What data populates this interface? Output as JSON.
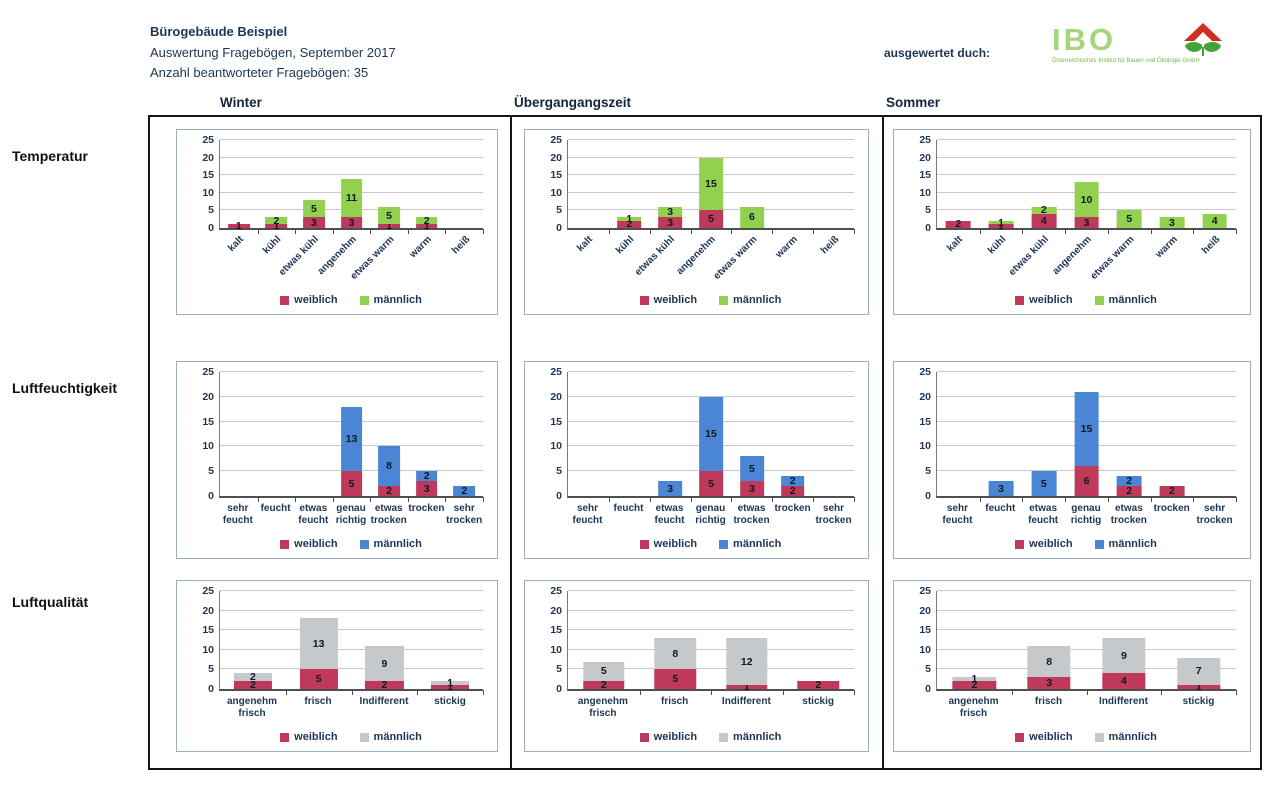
{
  "page": {
    "title": "Bürogebäude Beispiel",
    "subtitle": "Auswertung Fragebögen, September 2017",
    "answered_count": "Anzahl beantworteter Fragebögen: 35",
    "evaluated_by": "ausgewertet duch:",
    "ibo": {
      "name": "IBO",
      "caption": "Österreichisches Institut für Bauen und Ökologie GmbH"
    }
  },
  "columns": [
    "Winter",
    "Übergangangszeit",
    "Sommer"
  ],
  "row_labels": [
    "Temperatur",
    "Luftfeuchtigkeit",
    "Luftqualität"
  ],
  "legend": {
    "female": "weiblich",
    "male": "männlich"
  },
  "colors": {
    "weiblich": "#bf3a5a",
    "maennlich_temperatur": "#92d050",
    "maennlich_luftfeuchtigkeit": "#4a86d4",
    "maennlich_luftqualitaet": "#c5c9cc",
    "gridline": "#c9c9c9",
    "ibo_green": "#a5d57d",
    "logo_red": "#cf2e24",
    "logo_leaf_green": "#44a335"
  },
  "chart_data": [
    {
      "type": "bar",
      "stacked": true,
      "title": "Temperatur – Winter",
      "row": "Temperatur",
      "column": "Winter",
      "categories": [
        "kalt",
        "kühl",
        "etwas kühl",
        "angenehm",
        "etwas warm",
        "warm",
        "heiß"
      ],
      "series": [
        {
          "name": "weiblich",
          "values": [
            1,
            1,
            3,
            3,
            1,
            1,
            0
          ]
        },
        {
          "name": "männlich",
          "values": [
            0,
            2,
            5,
            11,
            5,
            2,
            0
          ]
        }
      ],
      "male_color": "#92d050",
      "ylim": [
        0,
        25
      ],
      "yticks": [
        0,
        5,
        10,
        15,
        20,
        25
      ],
      "rotated_x_labels": true,
      "legend_position": "bottom",
      "grid": true
    },
    {
      "type": "bar",
      "stacked": true,
      "title": "Temperatur – Übergangangszeit",
      "row": "Temperatur",
      "column": "Übergangangszeit",
      "categories": [
        "kalt",
        "kühl",
        "etwas kühl",
        "angenehm",
        "etwas warm",
        "warm",
        "heiß"
      ],
      "series": [
        {
          "name": "weiblich",
          "values": [
            0,
            2,
            3,
            5,
            0,
            0,
            0
          ]
        },
        {
          "name": "männlich",
          "values": [
            0,
            1,
            3,
            15,
            6,
            0,
            0
          ]
        }
      ],
      "male_color": "#92d050",
      "ylim": [
        0,
        25
      ],
      "yticks": [
        0,
        5,
        10,
        15,
        20,
        25
      ],
      "rotated_x_labels": true,
      "legend_position": "bottom",
      "grid": true
    },
    {
      "type": "bar",
      "stacked": true,
      "title": "Temperatur – Sommer",
      "row": "Temperatur",
      "column": "Sommer",
      "categories": [
        "kalt",
        "kühl",
        "etwas kühl",
        "angenehm",
        "etwas warm",
        "warm",
        "heiß"
      ],
      "series": [
        {
          "name": "weiblich",
          "values": [
            2,
            1,
            4,
            3,
            0,
            0,
            0
          ]
        },
        {
          "name": "männlich",
          "values": [
            0,
            1,
            2,
            10,
            5,
            3,
            4
          ]
        }
      ],
      "male_color": "#92d050",
      "ylim": [
        0,
        25
      ],
      "yticks": [
        0,
        5,
        10,
        15,
        20,
        25
      ],
      "rotated_x_labels": true,
      "legend_position": "bottom",
      "grid": true
    },
    {
      "type": "bar",
      "stacked": true,
      "title": "Luftfeuchtigkeit – Winter",
      "row": "Luftfeuchtigkeit",
      "column": "Winter",
      "categories": [
        "sehr feucht",
        "feucht",
        "etwas feucht",
        "genau richtig",
        "etwas trocken",
        "trocken",
        "sehr trocken"
      ],
      "series": [
        {
          "name": "weiblich",
          "values": [
            0,
            0,
            0,
            5,
            2,
            3,
            0
          ]
        },
        {
          "name": "männlich",
          "values": [
            0,
            0,
            0,
            13,
            8,
            2,
            2
          ]
        }
      ],
      "male_color": "#4a86d4",
      "ylim": [
        0,
        25
      ],
      "yticks": [
        0,
        5,
        10,
        15,
        20,
        25
      ],
      "rotated_x_labels": false,
      "legend_position": "bottom",
      "grid": true
    },
    {
      "type": "bar",
      "stacked": true,
      "title": "Luftfeuchtigkeit – Übergangangszeit",
      "row": "Luftfeuchtigkeit",
      "column": "Übergangangszeit",
      "categories": [
        "sehr feucht",
        "feucht",
        "etwas feucht",
        "genau richtig",
        "etwas trocken",
        "trocken",
        "sehr trocken"
      ],
      "series": [
        {
          "name": "weiblich",
          "values": [
            0,
            0,
            0,
            5,
            3,
            2,
            0
          ]
        },
        {
          "name": "männlich",
          "values": [
            0,
            0,
            3,
            15,
            5,
            2,
            0
          ]
        }
      ],
      "male_color": "#4a86d4",
      "ylim": [
        0,
        25
      ],
      "yticks": [
        0,
        5,
        10,
        15,
        20,
        25
      ],
      "rotated_x_labels": false,
      "legend_position": "bottom",
      "grid": true
    },
    {
      "type": "bar",
      "stacked": true,
      "title": "Luftfeuchtigkeit – Sommer",
      "row": "Luftfeuchtigkeit",
      "column": "Sommer",
      "categories": [
        "sehr feucht",
        "feucht",
        "etwas feucht",
        "genau richtig",
        "etwas trocken",
        "trocken",
        "sehr trocken"
      ],
      "series": [
        {
          "name": "weiblich",
          "values": [
            0,
            0,
            0,
            6,
            2,
            2,
            0
          ]
        },
        {
          "name": "männlich",
          "values": [
            0,
            3,
            5,
            15,
            2,
            0,
            0
          ]
        }
      ],
      "male_color": "#4a86d4",
      "ylim": [
        0,
        25
      ],
      "yticks": [
        0,
        5,
        10,
        15,
        20,
        25
      ],
      "rotated_x_labels": false,
      "legend_position": "bottom",
      "grid": true
    },
    {
      "type": "bar",
      "stacked": true,
      "title": "Luftqualität – Winter",
      "row": "Luftqualität",
      "column": "Winter",
      "categories": [
        "angenehm frisch",
        "frisch",
        "Indifferent",
        "stickig"
      ],
      "series": [
        {
          "name": "weiblich",
          "values": [
            2,
            5,
            2,
            1
          ]
        },
        {
          "name": "männlich",
          "values": [
            2,
            13,
            9,
            1
          ]
        }
      ],
      "male_color": "#c5c9cc",
      "ylim": [
        0,
        25
      ],
      "yticks": [
        0,
        5,
        10,
        15,
        20,
        25
      ],
      "rotated_x_labels": false,
      "legend_position": "bottom",
      "grid": true
    },
    {
      "type": "bar",
      "stacked": true,
      "title": "Luftqualität – Übergangangszeit",
      "row": "Luftqualität",
      "column": "Übergangangszeit",
      "categories": [
        "angenehm frisch",
        "frisch",
        "Indifferent",
        "stickig"
      ],
      "series": [
        {
          "name": "weiblich",
          "values": [
            2,
            5,
            1,
            2
          ]
        },
        {
          "name": "männlich",
          "values": [
            5,
            8,
            12,
            0
          ]
        }
      ],
      "male_color": "#c5c9cc",
      "ylim": [
        0,
        25
      ],
      "yticks": [
        0,
        5,
        10,
        15,
        20,
        25
      ],
      "rotated_x_labels": false,
      "legend_position": "bottom",
      "grid": true
    },
    {
      "type": "bar",
      "stacked": true,
      "title": "Luftqualität – Sommer",
      "row": "Luftqualität",
      "column": "Sommer",
      "categories": [
        "angenehm frisch",
        "frisch",
        "Indifferent",
        "stickig"
      ],
      "series": [
        {
          "name": "weiblich",
          "values": [
            2,
            3,
            4,
            1
          ]
        },
        {
          "name": "männlich",
          "values": [
            1,
            8,
            9,
            7
          ]
        }
      ],
      "male_color": "#c5c9cc",
      "ylim": [
        0,
        25
      ],
      "yticks": [
        0,
        5,
        10,
        15,
        20,
        25
      ],
      "rotated_x_labels": false,
      "legend_position": "bottom",
      "grid": true
    }
  ]
}
